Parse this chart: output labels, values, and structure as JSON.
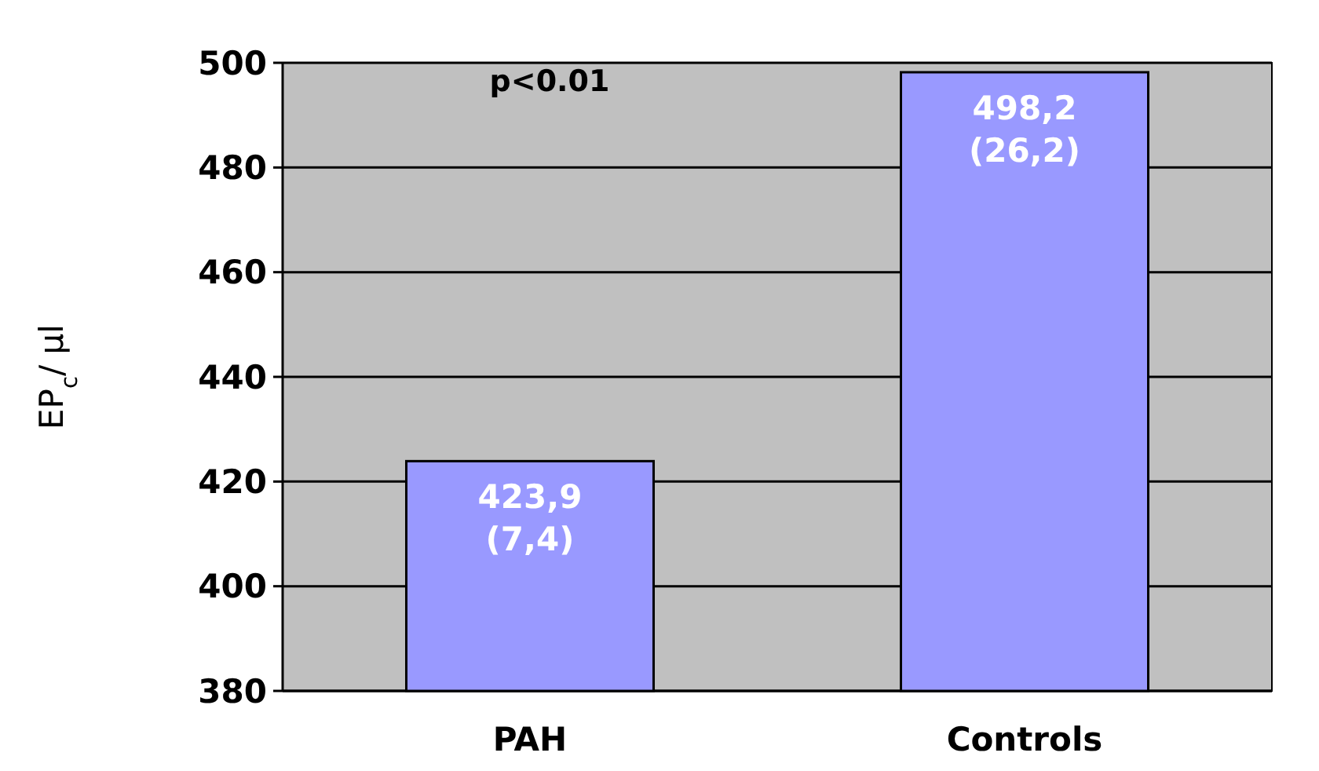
{
  "chart_data": {
    "type": "bar",
    "ylabel": "EP$_{c}$/ µl",
    "categories": [
      "PAH",
      "Controls"
    ],
    "values": [
      423.9,
      498.2
    ],
    "color": "#9999ff",
    "value_labels": [
      "423,9\n(7,4)",
      "498,2\n(26,2)"
    ],
    "ylim": [
      380,
      500
    ],
    "yticks": [
      380,
      400,
      420,
      440,
      460,
      480,
      500
    ],
    "grid": "y",
    "annotations": [
      "p<0.01"
    ]
  }
}
